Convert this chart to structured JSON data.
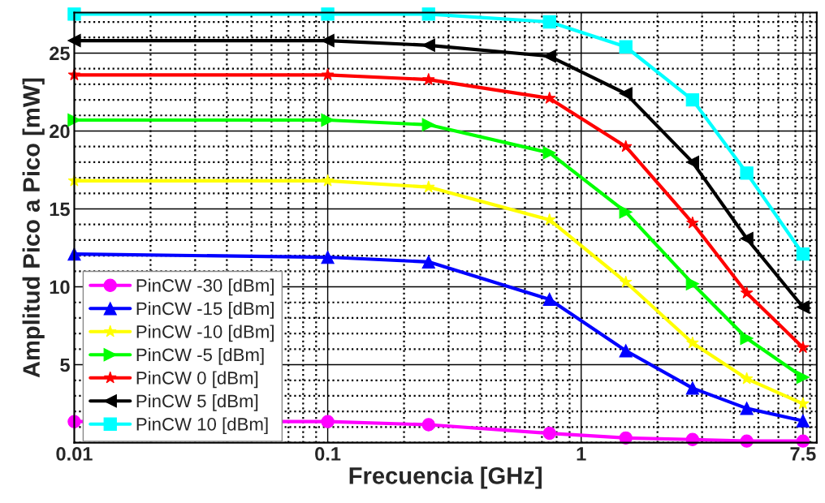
{
  "chart_data": {
    "type": "line",
    "xlabel": "Frecuencia [GHz]",
    "ylabel": "Amplitud Pico a Pico [mW]",
    "log": "x",
    "xlim": [
      0.01,
      8.5
    ],
    "xticks": [
      0.01,
      0.1,
      1,
      7.5
    ],
    "ylim": [
      0,
      27.6
    ],
    "yticks": [
      5,
      10,
      15,
      20,
      25
    ],
    "grid": true,
    "legend": "bottom left",
    "line_style": "solid",
    "x": [
      0.01,
      0.1,
      0.25,
      0.75,
      1.5,
      2.75,
      4.5,
      7.5
    ],
    "series": [
      {
        "name": "PinCW -30 [dBm]",
        "color": "#ff00ff",
        "marker": "circle",
        "values": [
          1.35,
          1.35,
          1.15,
          0.6,
          0.3,
          0.2,
          0.1,
          0.1
        ]
      },
      {
        "name": "PinCW -15 [dBm]",
        "color": "#0000ff",
        "marker": "triangle",
        "values": [
          12.1,
          11.9,
          11.6,
          9.2,
          5.9,
          3.5,
          2.2,
          1.4
        ]
      },
      {
        "name": "PinCW -10 [dBm]",
        "color": "#ffff00",
        "marker": "star",
        "values": [
          16.8,
          16.8,
          16.4,
          14.3,
          10.3,
          6.4,
          4.1,
          2.5
        ]
      },
      {
        "name": "PinCW -5 [dBm]",
        "color": "#00ff00",
        "marker": "triangle-right",
        "values": [
          20.7,
          20.7,
          20.4,
          18.6,
          14.8,
          10.2,
          6.7,
          4.2
        ]
      },
      {
        "name": "PinCW 0 [dBm]",
        "color": "#ff0000",
        "marker": "star",
        "values": [
          23.6,
          23.6,
          23.3,
          22.1,
          19.0,
          14.1,
          9.6,
          6.1
        ]
      },
      {
        "name": "PinCW 5 [dBm]",
        "color": "#000000",
        "marker": "triangle-left",
        "values": [
          25.8,
          25.8,
          25.5,
          24.8,
          22.4,
          18.0,
          13.1,
          8.7
        ]
      },
      {
        "name": "PinCW 10 [dBm]",
        "color": "#00ffff",
        "marker": "square",
        "values": [
          27.5,
          27.5,
          27.5,
          27.0,
          25.4,
          22.0,
          17.3,
          12.1
        ]
      }
    ]
  }
}
